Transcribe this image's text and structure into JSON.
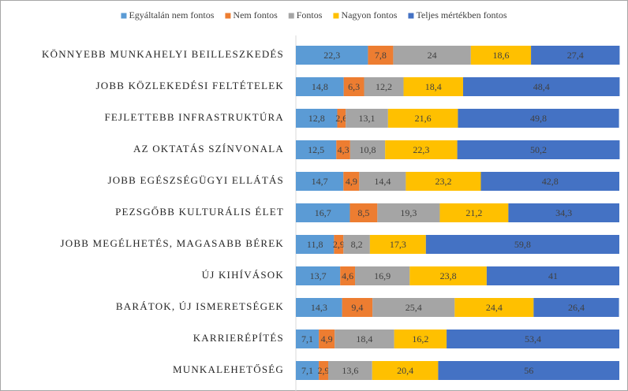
{
  "chart_data": {
    "type": "stacked-barh",
    "categories": [
      "KÖNNYEBB MUNKAHELYI BEILLESZKEDÉS",
      "JOBB KÖZLEKEDÉSI FELTÉTELEK",
      "FEJLETTEBB INFRASTRUKTÚRA",
      "AZ OKTATÁS SZÍNVONALA",
      "JOBB EGÉSZSÉGÜGYI ELLÁTÁS",
      "PEZSGŐBB KULTURÁLIS ÉLET",
      "JOBB MEGÉLHETÉS, MAGASABB BÉREK",
      "ÚJ KIHÍVÁSOK",
      "BARÁTOK, ÚJ ISMERETSÉGEK",
      "KARRIERÉPÍTÉS",
      "MUNKALEHETŐSÉG"
    ],
    "xlim": [
      0,
      100
    ],
    "legend": "top",
    "series": [
      {
        "name": "Egyáltalán nem fontos",
        "color": "#5b9bd5",
        "values": [
          22.3,
          14.8,
          12.8,
          12.5,
          14.7,
          16.7,
          11.8,
          13.7,
          14.3,
          7.1,
          7.1
        ],
        "value_labels": [
          "22,3",
          "14,8",
          "12,8",
          "12,5",
          "14,7",
          "16,7",
          "11,8",
          "13,7",
          "14,3",
          "7,1",
          "7,1"
        ]
      },
      {
        "name": "Nem fontos",
        "color": "#ed7d31",
        "values": [
          7.8,
          6.3,
          2.6,
          4.3,
          4.9,
          8.5,
          2.9,
          4.6,
          9.4,
          4.9,
          2.9
        ],
        "value_labels": [
          "7,8",
          "6,3",
          "2,6",
          "4,3",
          "4,9",
          "8,5",
          "2,9",
          "4,6",
          "9,4",
          "4,9",
          "2,9"
        ]
      },
      {
        "name": "Fontos",
        "color": "#a5a5a5",
        "values": [
          24,
          12.2,
          13.1,
          10.8,
          14.4,
          19.3,
          8.2,
          16.9,
          25.4,
          18.4,
          13.6
        ],
        "value_labels": [
          "24",
          "12,2",
          "13,1",
          "10,8",
          "14,4",
          "19,3",
          "8,2",
          "16,9",
          "25,4",
          "18,4",
          "13,6"
        ]
      },
      {
        "name": "Nagyon fontos",
        "color": "#ffc000",
        "values": [
          18.6,
          18.4,
          21.6,
          22.3,
          23.2,
          21.2,
          17.3,
          23.8,
          24.4,
          16.2,
          20.4
        ],
        "value_labels": [
          "18,6",
          "18,4",
          "21,6",
          "22,3",
          "23,2",
          "21,2",
          "17,3",
          "23,8",
          "24,4",
          "16,2",
          "20,4"
        ]
      },
      {
        "name": "Teljes mértékben fontos",
        "color": "#4472c4",
        "values": [
          27.4,
          48.4,
          49.8,
          50.2,
          42.8,
          34.3,
          59.8,
          41,
          26.4,
          53.4,
          56
        ],
        "value_labels": [
          "27,4",
          "48,4",
          "49,8",
          "50,2",
          "42,8",
          "34,3",
          "59,8",
          "41",
          "26,4",
          "53,4",
          "56"
        ]
      }
    ]
  }
}
